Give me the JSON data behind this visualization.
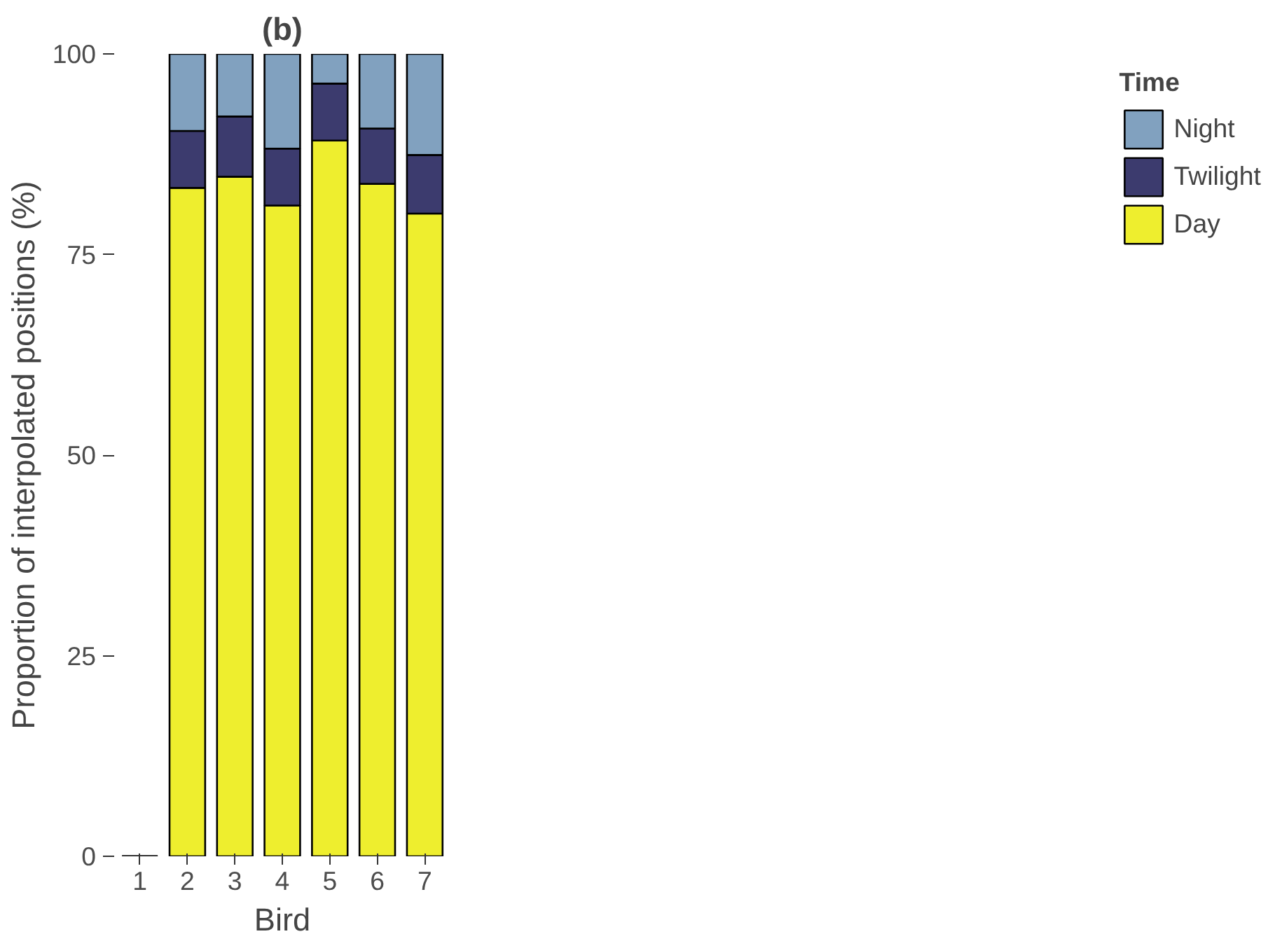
{
  "chart_data": {
    "type": "bar",
    "title": "(b)",
    "xlabel": "Bird",
    "ylabel": "Proportion of interpolated positions (%)",
    "legend_title": "Time",
    "categories": [
      "1",
      "2",
      "3",
      "4",
      "5",
      "6",
      "7"
    ],
    "stacked": true,
    "series": [
      {
        "name": "Day",
        "color": "#eeee2e",
        "values": [
          0,
          83.3,
          84.7,
          81.1,
          89.2,
          83.8,
          80.1
        ]
      },
      {
        "name": "Twilight",
        "color": "#3c3b6e",
        "values": [
          0,
          7.1,
          7.5,
          7.1,
          7.1,
          6.9,
          7.3
        ]
      },
      {
        "name": "Night",
        "color": "#81a1bf",
        "values": [
          0,
          9.6,
          7.8,
          11.8,
          3.7,
          9.3,
          12.6
        ]
      }
    ],
    "ylim": [
      0,
      100
    ],
    "yticks": [
      0,
      25,
      50,
      75,
      100
    ],
    "grid": false,
    "legend": "right"
  }
}
